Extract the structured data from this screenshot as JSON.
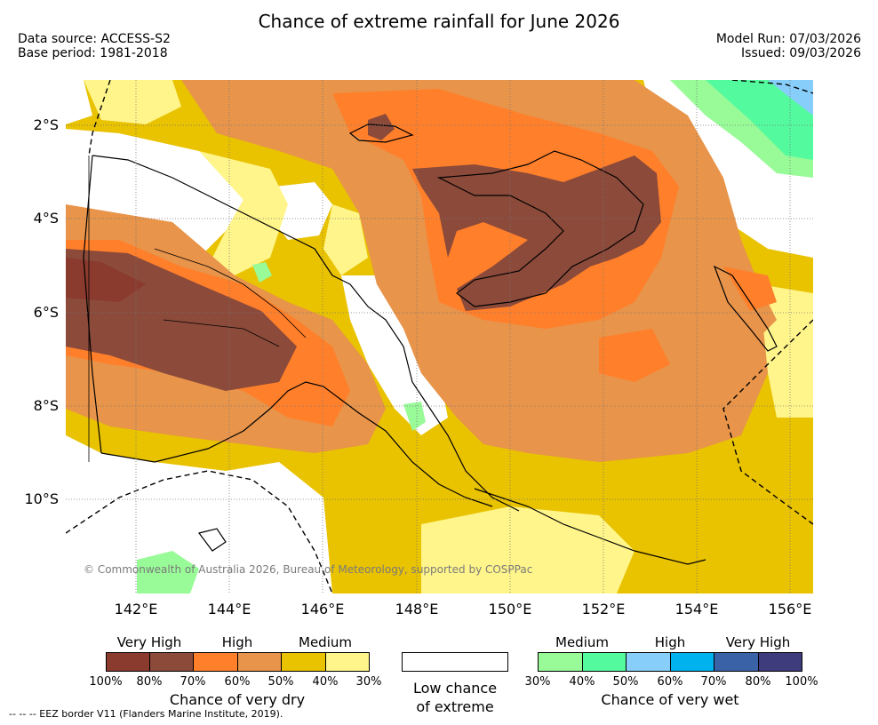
{
  "title": "Chance of extreme rainfall for June 2026",
  "data_source": "Data source: ACCESS-S2",
  "base_period": "Base period: 1981-2018",
  "model_run": "Model Run: 07/03/2026",
  "issued": "Issued: 09/03/2026",
  "lat_labels": [
    "2°S",
    "4°S",
    "6°S",
    "8°S",
    "10°S"
  ],
  "lon_labels": [
    "142°E",
    "144°E",
    "146°E",
    "148°E",
    "150°E",
    "152°E",
    "154°E",
    "156°E"
  ],
  "copyright": "© Commonwealth of Australia 2026, Bureau of Meteorology, supported by COSPPac",
  "eez_note": "-- -- -- EEZ border V11 (Flanders Marine Institute, 2019).",
  "legend_dry": {
    "headings": [
      "Very High",
      "High",
      "Medium"
    ],
    "percents": [
      "100%",
      "80%",
      "70%",
      "60%",
      "50%",
      "40%",
      "30%"
    ],
    "colors": [
      "#8b3a2e",
      "#8b4a3a",
      "#ff7f2a",
      "#e8944a",
      "#e9c200",
      "#fff58a"
    ],
    "title": "Chance of very dry"
  },
  "legend_low": {
    "line1": "Low chance",
    "line2": "of extreme",
    "color": "#ffffff"
  },
  "legend_wet": {
    "headings": [
      "Medium",
      "High",
      "Very High"
    ],
    "percents": [
      "30%",
      "40%",
      "50%",
      "60%",
      "70%",
      "80%",
      "100%"
    ],
    "colors": [
      "#98fb98",
      "#54fa9e",
      "#87cefa",
      "#00b2ee",
      "#3a62a6",
      "#3e3c7c"
    ],
    "title": "Chance of very wet"
  }
}
